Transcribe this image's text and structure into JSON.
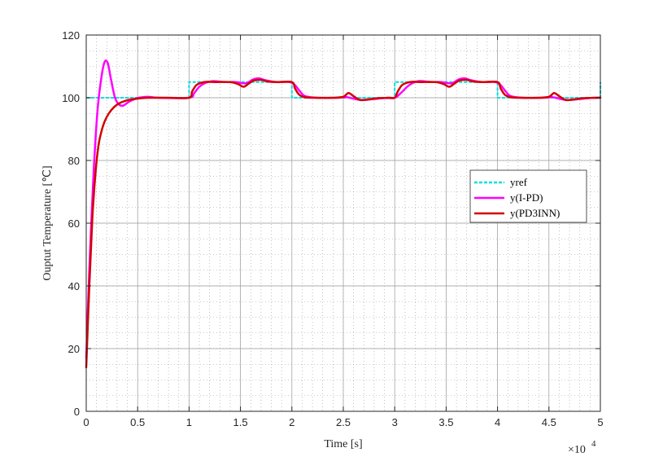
{
  "chart_data": {
    "type": "line",
    "title": "",
    "xlabel": "Time [s]",
    "ylabel": "Ouptut Temperature [℃]",
    "x_exponent_base": "×10",
    "x_exponent_power": "4",
    "x_scale": 10000,
    "xlim": [
      0,
      50000
    ],
    "ylim": [
      0,
      120
    ],
    "x_ticks": [
      0,
      5000,
      10000,
      15000,
      20000,
      25000,
      30000,
      35000,
      40000,
      45000,
      50000
    ],
    "x_tick_labels": [
      "0",
      "0.5",
      "1",
      "1.5",
      "2",
      "2.5",
      "3",
      "3.5",
      "4",
      "4.5",
      "5"
    ],
    "y_ticks": [
      0,
      20,
      40,
      60,
      80,
      100,
      120
    ],
    "y_tick_labels": [
      "0",
      "20",
      "40",
      "60",
      "80",
      "100",
      "120"
    ],
    "grid": true,
    "minor_grid": true,
    "legend_position": "right",
    "series": [
      {
        "name": "yref",
        "color": "#00e0e0",
        "style": "dashed",
        "x": [
          0,
          10000,
          10000,
          20000,
          20000,
          30000,
          30000,
          40000,
          40000,
          50000,
          50000
        ],
        "y": [
          100,
          100,
          105,
          105,
          100,
          100,
          105,
          105,
          100,
          100,
          105
        ]
      },
      {
        "name": "y(I-PD)",
        "color": "#ff00ff",
        "style": "solid",
        "x": [
          0,
          300,
          700,
          1100,
          1500,
          1800,
          2100,
          2400,
          2800,
          3200,
          3600,
          4200,
          5000,
          6000,
          7000,
          10000,
          10500,
          11000,
          11500,
          12300,
          13500,
          14500,
          15500,
          16200,
          16800,
          17400,
          18500,
          19800,
          20300,
          20800,
          21300,
          22500,
          24500,
          25300,
          26000,
          26800,
          28000,
          29000,
          30000,
          30600,
          31400,
          32300,
          33500,
          34500,
          35500,
          36200,
          36800,
          37400,
          38500,
          39800,
          40300,
          40800,
          41300,
          42500,
          44500,
          45300,
          46000,
          46800,
          48000,
          49000,
          50000
        ],
        "y": [
          17,
          45,
          75,
          96,
          107,
          111.5,
          111,
          106,
          100,
          97.8,
          97.5,
          98.8,
          99.9,
          100.3,
          100,
          100,
          101.5,
          103.5,
          104.6,
          105.3,
          105,
          105,
          104.6,
          105.8,
          106.2,
          105.6,
          105,
          105,
          104,
          102,
          100.5,
          100,
          100,
          100.2,
          99.7,
          99.3,
          99.6,
          99.9,
          100,
          101.5,
          104,
          105.3,
          105,
          105,
          104.6,
          105.8,
          106.2,
          105.6,
          105,
          105,
          104,
          102,
          100.5,
          100,
          100,
          100.2,
          99.7,
          99.3,
          99.6,
          99.9,
          100
        ]
      },
      {
        "name": "y(PD3INN)",
        "color": "#d40000",
        "style": "solid",
        "x": [
          0,
          300,
          600,
          900,
          1200,
          1500,
          1800,
          2200,
          2700,
          3200,
          3800,
          4500,
          5500,
          6500,
          8000,
          10000,
          10300,
          10700,
          11200,
          11800,
          12500,
          14000,
          14800,
          15300,
          15800,
          16300,
          17000,
          17600,
          18500,
          20000,
          20300,
          20700,
          21200,
          22000,
          24000,
          25000,
          25500,
          26000,
          26600,
          27300,
          28200,
          29500,
          30000,
          30300,
          30700,
          31200,
          31800,
          32500,
          34000,
          34800,
          35300,
          35800,
          36300,
          37000,
          37600,
          38500,
          40000,
          40300,
          40700,
          41200,
          42000,
          44000,
          45000,
          45500,
          46000,
          46600,
          47300,
          48200,
          49500,
          50000
        ],
        "y": [
          14,
          40,
          62,
          76,
          85,
          89.5,
          92.5,
          95,
          97,
          98.2,
          99,
          99.5,
          99.9,
          100,
          100,
          100,
          102,
          104,
          104.8,
          105.1,
          105,
          105,
          104.3,
          103.5,
          104.5,
          105.5,
          105.7,
          105.2,
          105,
          105,
          103,
          101,
          100.2,
          100,
          100,
          100.3,
          101.5,
          100.5,
          99.3,
          99.4,
          99.8,
          100,
          100,
          102,
          104,
          104.8,
          105.1,
          105,
          105,
          104.3,
          103.5,
          104.5,
          105.5,
          105.7,
          105.2,
          105,
          105,
          103,
          101,
          100.2,
          100,
          100,
          100.3,
          101.5,
          100.5,
          99.3,
          99.4,
          99.8,
          100,
          100
        ]
      }
    ]
  }
}
